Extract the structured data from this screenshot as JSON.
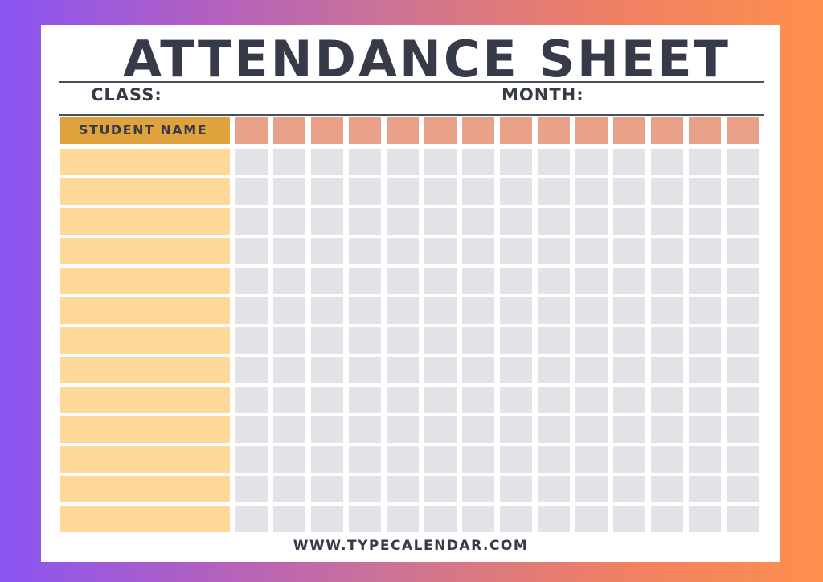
{
  "sheet": {
    "title": "ATTENDANCE SHEET",
    "class_label": "CLASS:",
    "month_label": "MONTH:",
    "student_name_header": "STUDENT NAME",
    "website": "WWW.TYPECALENDAR.COM"
  },
  "table": {
    "day_columns": 14,
    "student_rows": 13
  },
  "colors": {
    "header_name": "#e0a23c",
    "header_day": "#e8a28a",
    "name_cell": "#fdd898",
    "day_cell": "#e2e3e7",
    "text": "#373a49"
  }
}
